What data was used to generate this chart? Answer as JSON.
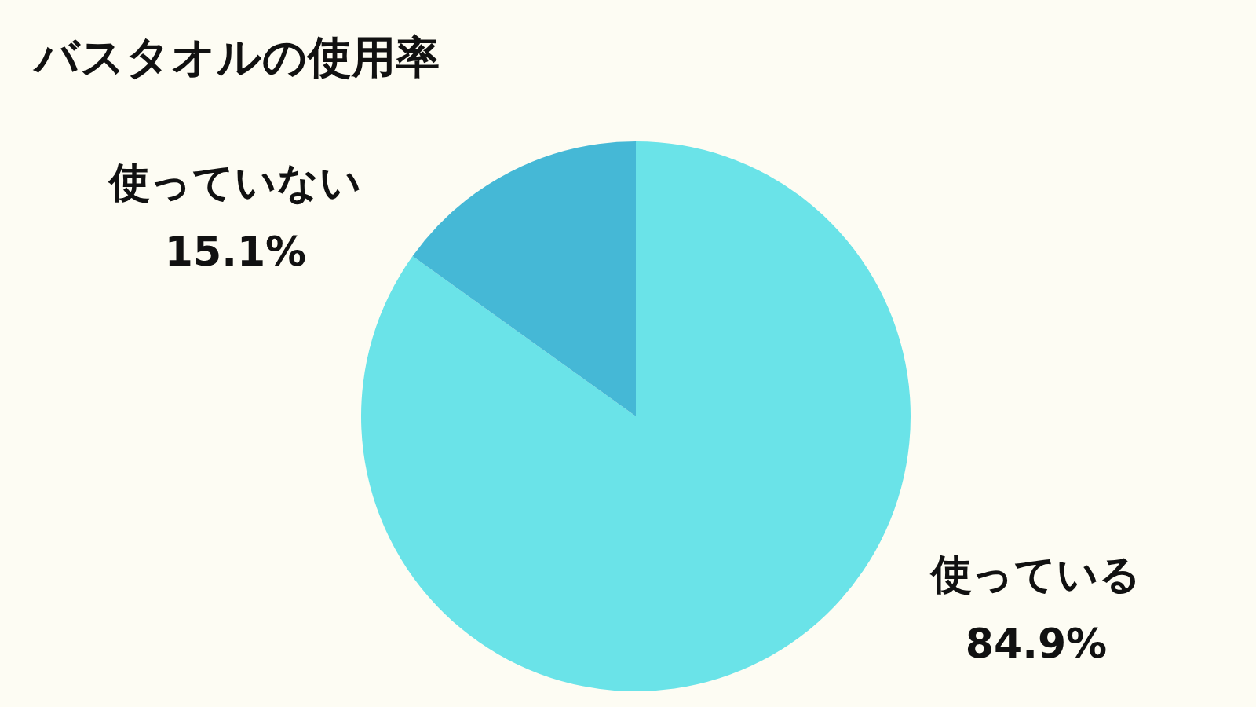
{
  "chart_data": {
    "type": "pie",
    "title": "バスタオルの使用率",
    "categories": [
      "使っている",
      "使っていない"
    ],
    "values": [
      84.9,
      15.1
    ],
    "colors": [
      "#6ae3e8",
      "#45b8d6"
    ],
    "value_labels": [
      "84.9%",
      "15.1%"
    ],
    "legend": false
  }
}
